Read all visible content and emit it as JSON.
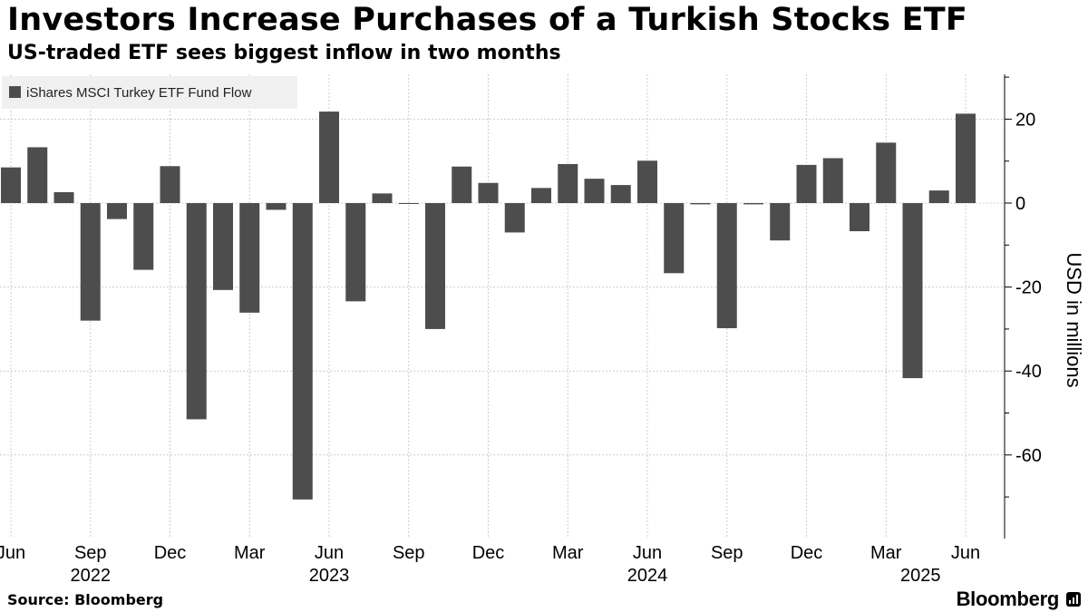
{
  "title": "Investors Increase Purchases of a Turkish Stocks ETF",
  "subtitle": "US-traded ETF sees biggest inflow in two months",
  "source": "Source: Bloomberg",
  "brand": "Bloomberg",
  "colors": {
    "bar": "#4d4d4d",
    "grid": "#cccccc",
    "legend_bg": "#f0f0f0"
  },
  "chart_data": {
    "type": "bar",
    "title": "Investors Increase Purchases of a Turkish Stocks ETF",
    "xlabel": "",
    "ylabel": "USD in millions",
    "ylim": [
      -76,
      30
    ],
    "y_ticks": [
      20,
      0,
      -20,
      -40,
      -60
    ],
    "y_tick_labels": [
      "20",
      "0",
      "-20",
      "-40",
      "-60"
    ],
    "legend": "iShares MSCI Turkey ETF Fund Flow",
    "legend_position": "top-left",
    "series": [
      {
        "name": "iShares MSCI Turkey ETF Fund Flow",
        "categories": [
          "2022-06",
          "2022-07",
          "2022-08",
          "2022-09",
          "2022-10",
          "2022-11",
          "2022-12",
          "2023-01",
          "2023-02",
          "2023-03",
          "2023-04",
          "2023-05",
          "2023-06",
          "2023-07",
          "2023-08",
          "2023-09",
          "2023-10",
          "2023-11",
          "2023-12",
          "2024-01",
          "2024-02",
          "2024-03",
          "2024-04",
          "2024-05",
          "2024-06",
          "2024-07",
          "2024-08",
          "2024-09",
          "2024-10",
          "2024-11",
          "2024-12",
          "2025-01",
          "2025-02",
          "2025-03",
          "2025-04",
          "2025-05",
          "2025-06"
        ],
        "values": [
          8.5,
          13.3,
          2.6,
          -28.0,
          -3.8,
          -15.9,
          8.8,
          -51.5,
          -20.7,
          -26.1,
          -1.6,
          -70.6,
          21.8,
          -23.4,
          2.3,
          -0.2,
          -30.0,
          8.7,
          4.8,
          -7.0,
          3.6,
          9.3,
          5.8,
          4.3,
          10.1,
          -16.7,
          -0.3,
          -29.8,
          -0.3,
          -8.9,
          9.1,
          10.7,
          -6.7,
          14.4,
          -41.7,
          3.0,
          21.3
        ]
      }
    ],
    "x_ticks": [
      {
        "index": 0,
        "label": "Jun",
        "year": "2022"
      },
      {
        "index": 3,
        "label": "Sep",
        "year": ""
      },
      {
        "index": 6,
        "label": "Dec",
        "year": ""
      },
      {
        "index": 9,
        "label": "Mar",
        "year": ""
      },
      {
        "index": 12,
        "label": "Jun",
        "year": "2023"
      },
      {
        "index": 15,
        "label": "Sep",
        "year": ""
      },
      {
        "index": 18,
        "label": "Dec",
        "year": ""
      },
      {
        "index": 21,
        "label": "Mar",
        "year": ""
      },
      {
        "index": 24,
        "label": "Jun",
        "year": "2024"
      },
      {
        "index": 27,
        "label": "Sep",
        "year": ""
      },
      {
        "index": 30,
        "label": "Dec",
        "year": ""
      },
      {
        "index": 33,
        "label": "Mar",
        "year": "2025"
      },
      {
        "index": 36,
        "label": "Jun",
        "year": ""
      }
    ],
    "year_labels": [
      {
        "label": "2022",
        "at_index": 3.0
      },
      {
        "label": "2023",
        "at_index": 12.0
      },
      {
        "label": "2024",
        "at_index": 24.0
      },
      {
        "label": "2025",
        "at_index": 34.3
      }
    ]
  }
}
